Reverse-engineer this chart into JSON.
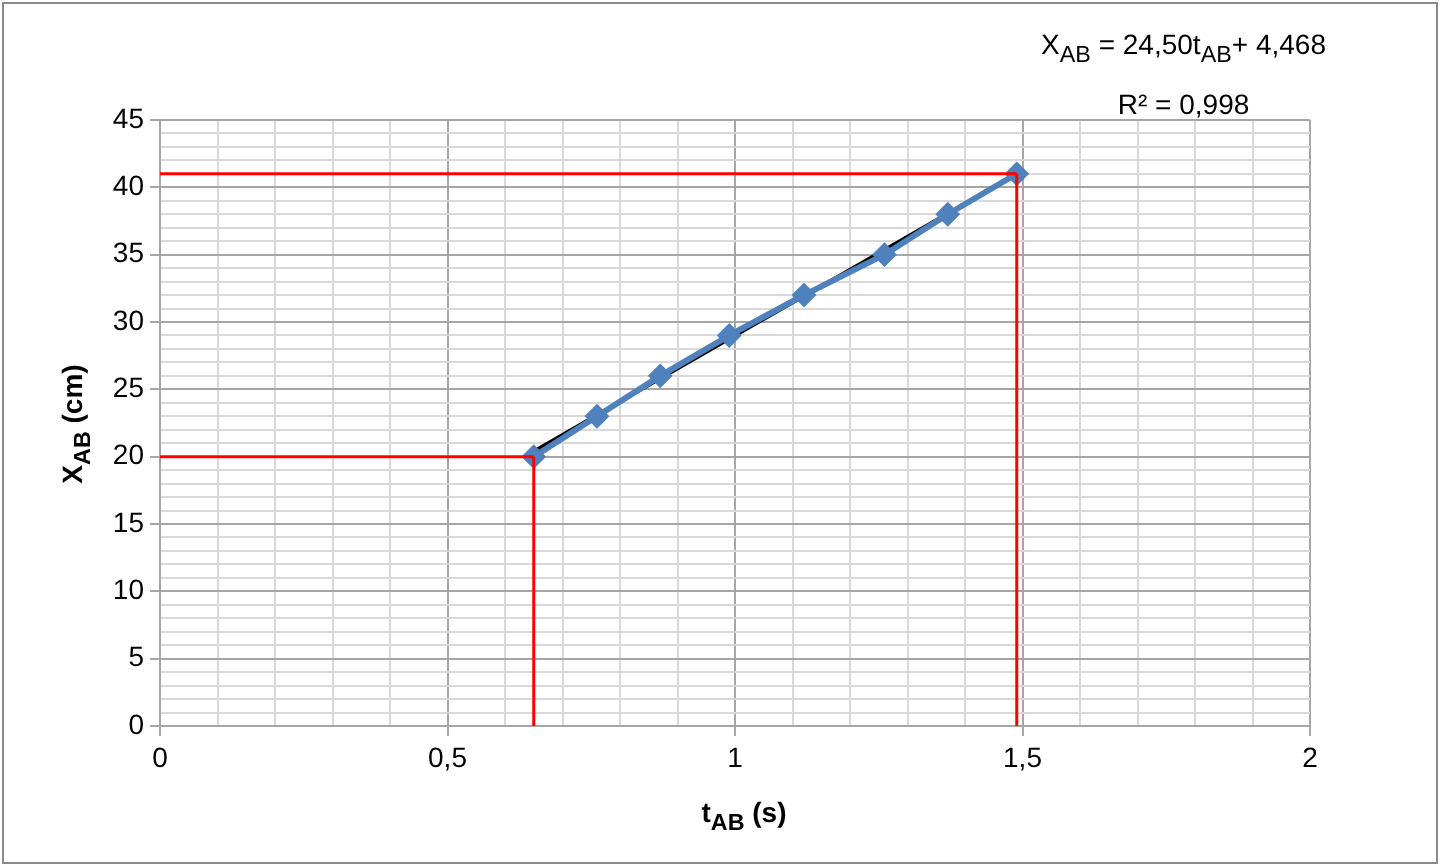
{
  "chart_data": {
    "type": "line",
    "xlabel": "t$_{AB}$ (s)",
    "ylabel": "X$_{AB}$ (cm)",
    "annotations": [
      "X$_{AB}$ = 24,50t$_{AB}$+ 4,468",
      "R² = 0,998"
    ],
    "series": [
      {
        "color": "#ff0000",
        "marker": "none",
        "x": [
          0.65,
          0.65
        ],
        "values": [
          0,
          20
        ]
      },
      {
        "color": "#ff0000",
        "marker": "none",
        "x": [
          0,
          0.65
        ],
        "values": [
          20,
          20
        ]
      },
      {
        "color": "#ff0000",
        "marker": "none",
        "x": [
          1.49,
          1.49
        ],
        "values": [
          0,
          41
        ]
      },
      {
        "color": "#ff0000",
        "marker": "none",
        "x": [
          0,
          1.49
        ],
        "values": [
          41,
          41
        ]
      },
      {
        "color": "#4f81bd",
        "marker": "diamond",
        "x": [
          0.65,
          0.76,
          0.87,
          0.99,
          1.12,
          1.26,
          1.37,
          1.49
        ],
        "values": [
          20,
          23,
          26,
          29,
          32,
          35,
          38,
          41
        ]
      },
      {
        "color": "#000000",
        "marker": "none",
        "x": [
          0.65,
          1.49
        ],
        "values": [
          20.4,
          41.0
        ]
      }
    ],
    "xlim": [
      0,
      2
    ],
    "ylim": [
      0,
      45
    ],
    "xticks": [
      0,
      {
        "value": 0.1,
        "label": null
      },
      {
        "value": 0.2,
        "label": null
      },
      {
        "value": 0.3,
        "label": null
      },
      {
        "value": 0.4,
        "label": null
      },
      {
        "value": 0.5,
        "label": "0,5"
      },
      {
        "value": 0.6,
        "label": null
      },
      {
        "value": 0.7,
        "label": null
      },
      {
        "value": 0.8,
        "label": null
      },
      {
        "value": 0.9,
        "label": null
      },
      1,
      {
        "value": 1.1,
        "label": null
      },
      {
        "value": 1.2,
        "label": null
      },
      {
        "value": 1.3,
        "label": null
      },
      {
        "value": 1.4,
        "label": null
      },
      {
        "value": 1.5,
        "label": "1,5"
      },
      {
        "value": 1.6,
        "label": null
      },
      {
        "value": 1.7,
        "label": null
      },
      {
        "value": 1.8,
        "label": null
      },
      {
        "value": 1.9,
        "label": null
      },
      2
    ],
    "yticks": [
      0,
      {
        "value": 1,
        "label": null
      },
      {
        "value": 2,
        "label": null
      },
      {
        "value": 3,
        "label": null
      },
      {
        "value": 4,
        "label": null
      },
      5,
      {
        "value": 6,
        "label": null
      },
      {
        "value": 7,
        "label": null
      },
      {
        "value": 8,
        "label": null
      },
      {
        "value": 9,
        "label": null
      },
      10,
      {
        "value": 11,
        "label": null
      },
      {
        "value": 12,
        "label": null
      },
      {
        "value": 13,
        "label": null
      },
      {
        "value": 14,
        "label": null
      },
      15,
      {
        "value": 16,
        "label": null
      },
      {
        "value": 17,
        "label": null
      },
      {
        "value": 18,
        "label": null
      },
      {
        "value": 19,
        "label": null
      },
      20,
      {
        "value": 21,
        "label": null
      },
      {
        "value": 22,
        "label": null
      },
      {
        "value": 23,
        "label": null
      },
      {
        "value": 24,
        "label": null
      },
      25,
      {
        "value": 26,
        "label": null
      },
      {
        "value": 27,
        "label": null
      },
      {
        "value": 28,
        "label": null
      },
      {
        "value": 29,
        "label": null
      },
      30,
      {
        "value": 31,
        "label": null
      },
      {
        "value": 32,
        "label": null
      },
      {
        "value": 33,
        "label": null
      },
      {
        "value": 34,
        "label": null
      },
      35,
      {
        "value": 36,
        "label": null
      },
      {
        "value": 37,
        "label": null
      },
      {
        "value": 38,
        "label": null
      },
      {
        "value": 39,
        "label": null
      },
      40,
      {
        "value": 41,
        "label": null
      },
      {
        "value": 42,
        "label": null
      },
      {
        "value": 43,
        "label": null
      },
      {
        "value": 44,
        "label": null
      },
      45
    ],
    "grid": true,
    "legend": false
  }
}
